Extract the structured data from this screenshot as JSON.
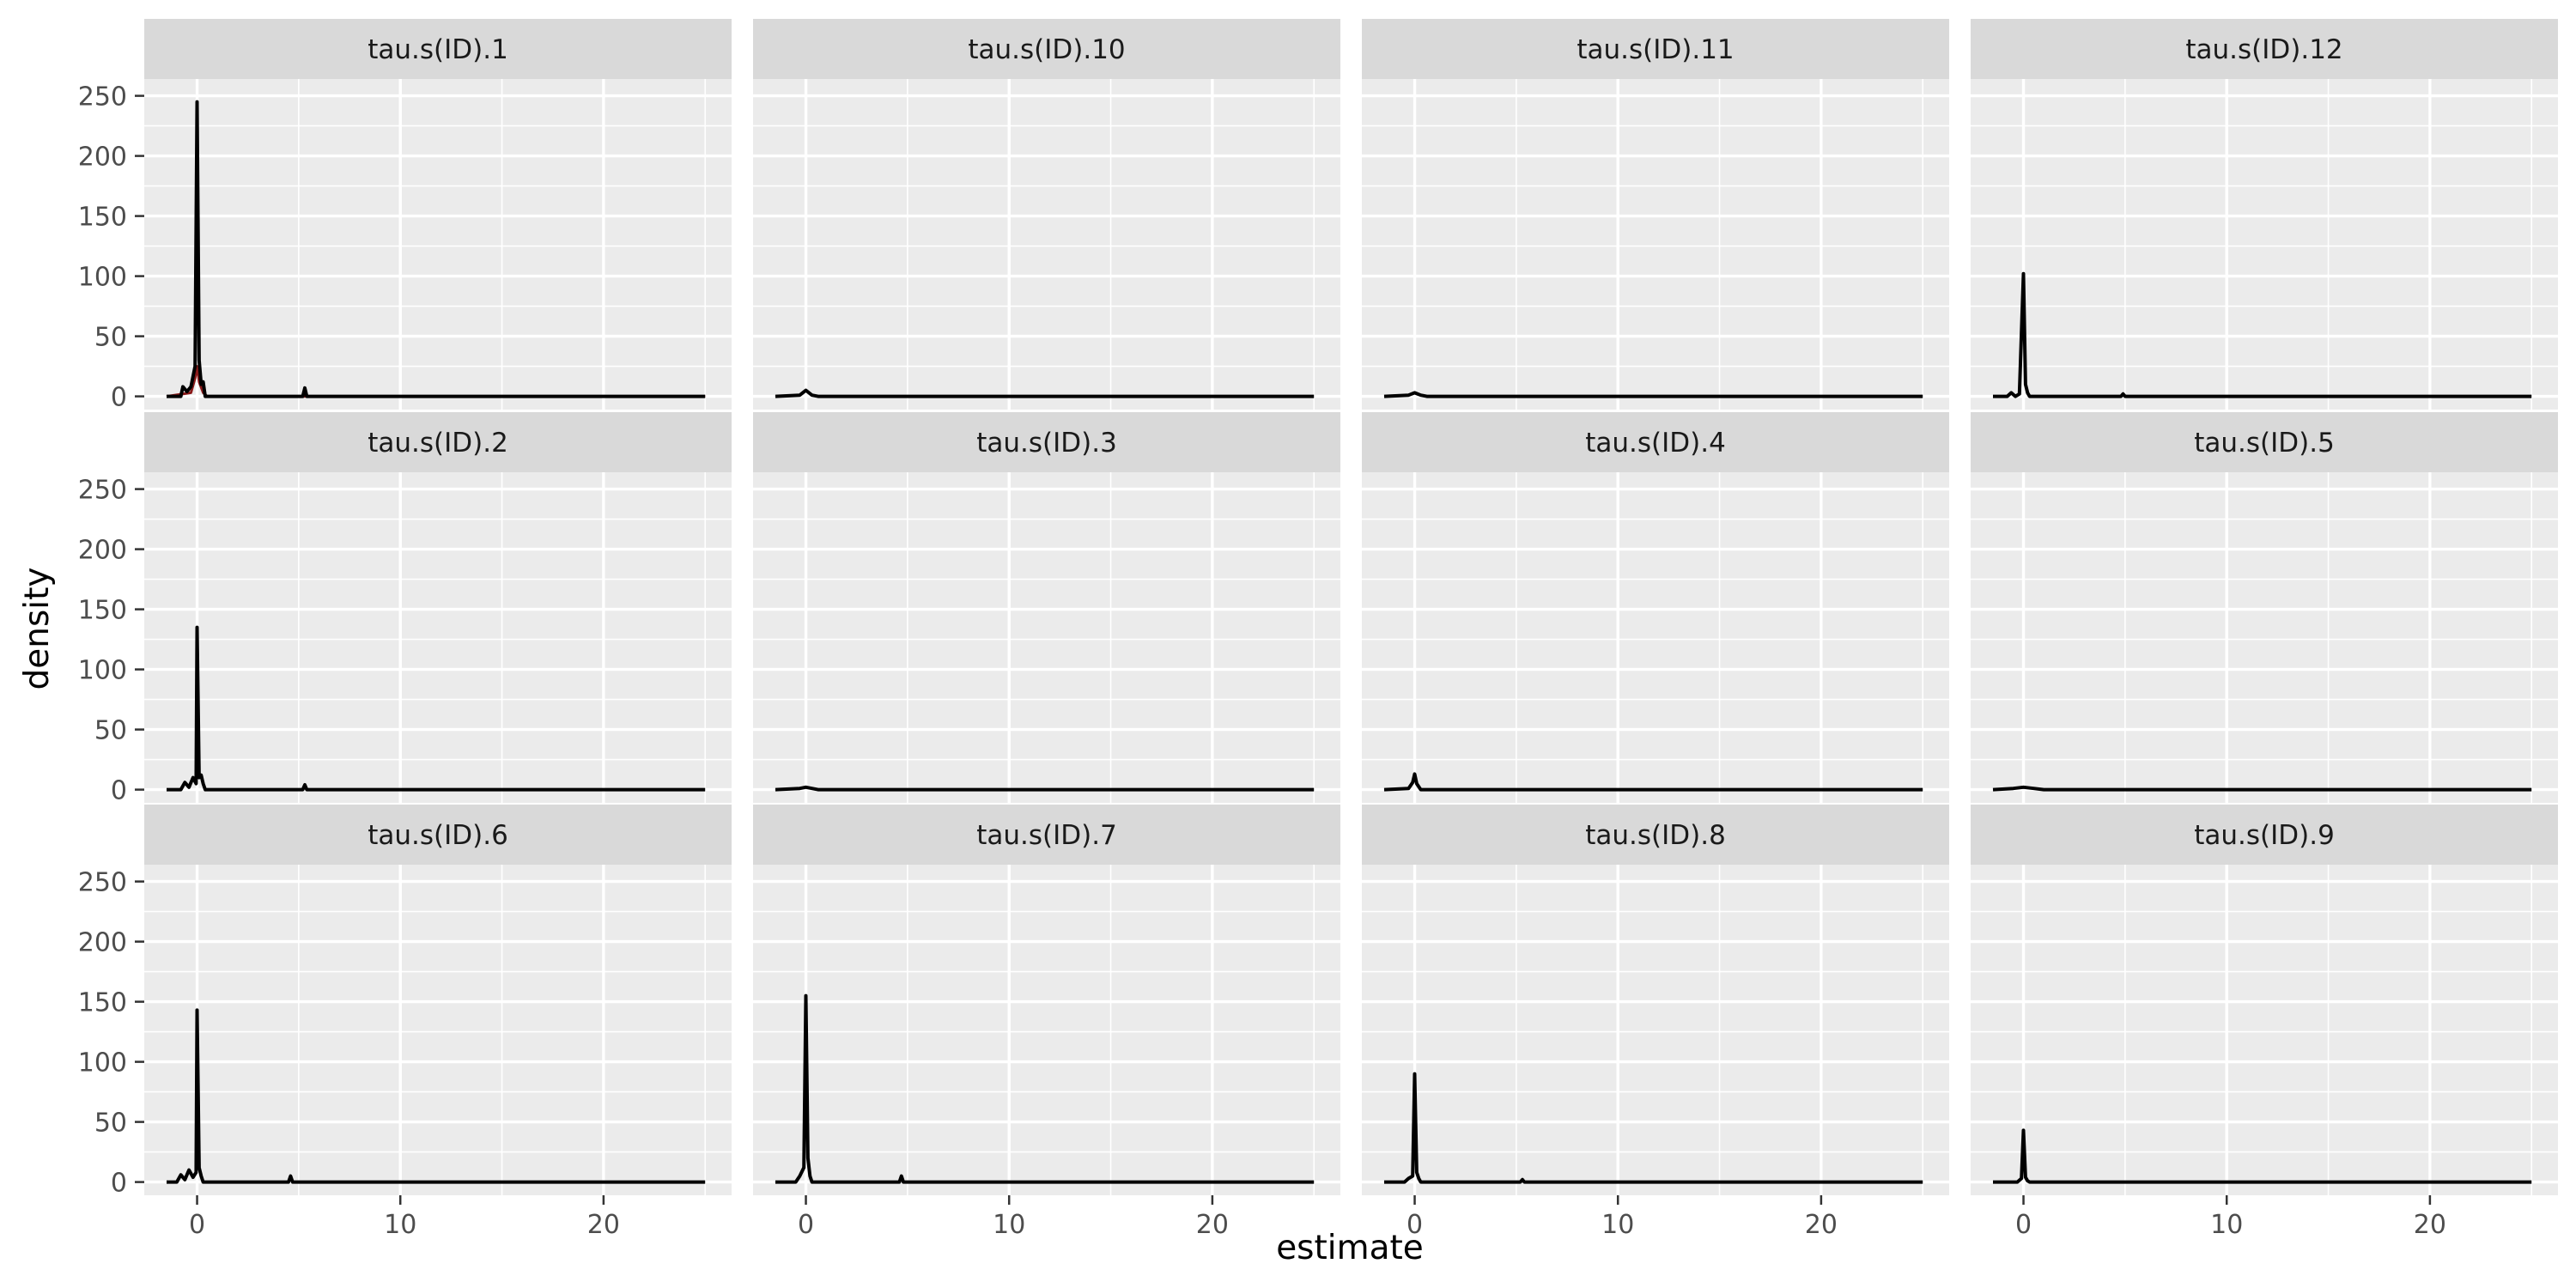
{
  "chart_data": {
    "type": "line",
    "layout": "facet-grid",
    "xlabel": "estimate",
    "ylabel": "density",
    "xlim": [
      -2.6,
      26.3
    ],
    "ylim": [
      -11,
      264
    ],
    "xticks": [
      0,
      10,
      20
    ],
    "xtick_labels": [
      "0",
      "10",
      "20"
    ],
    "yticks": [
      0,
      50,
      100,
      150,
      200,
      250
    ],
    "ytick_labels": [
      "0",
      "50",
      "100",
      "150",
      "200",
      "250"
    ],
    "grid": true,
    "legend": "none",
    "colors": {
      "panel_bg": "#ebebeb",
      "strip_bg": "#d9d9d9",
      "grid": "#ffffff",
      "line": "#000000",
      "secondary_line": "#8b1a1a"
    },
    "panels": [
      {
        "title": "tau.s(ID).1",
        "x": [
          -1.5,
          -0.8,
          -0.7,
          -0.5,
          -0.3,
          -0.1,
          0,
          0.1,
          0.2,
          0.3,
          0.4,
          5.2,
          5.3,
          5.4,
          25
        ],
        "y": [
          0,
          0,
          8,
          4,
          8,
          25,
          245,
          30,
          10,
          12,
          0,
          0,
          7,
          0,
          0
        ],
        "secondary": {
          "x": [
            -1.5,
            -0.3,
            -0.1,
            0,
            0.1,
            0.3,
            0.5,
            25
          ],
          "y": [
            0,
            3,
            15,
            25,
            12,
            3,
            0,
            0
          ]
        }
      },
      {
        "title": "tau.s(ID).10",
        "x": [
          -1.5,
          -0.3,
          0,
          0.3,
          0.6,
          25
        ],
        "y": [
          0,
          1,
          5,
          1,
          0,
          0
        ]
      },
      {
        "title": "tau.s(ID).11",
        "x": [
          -1.5,
          -0.3,
          0,
          0.3,
          0.6,
          25
        ],
        "y": [
          0,
          1,
          3,
          1,
          0,
          0
        ]
      },
      {
        "title": "tau.s(ID).12",
        "x": [
          -1.5,
          -0.8,
          -0.6,
          -0.4,
          -0.2,
          0,
          0.1,
          0.2,
          0.3,
          4.8,
          4.9,
          5.0,
          25
        ],
        "y": [
          0,
          0,
          3,
          0,
          2,
          102,
          10,
          3,
          0,
          0,
          2,
          0,
          0
        ]
      },
      {
        "title": "tau.s(ID).2",
        "x": [
          -1.5,
          -0.8,
          -0.6,
          -0.4,
          -0.2,
          -0.05,
          0,
          0.1,
          0.2,
          0.3,
          0.4,
          5.2,
          5.3,
          5.4,
          25
        ],
        "y": [
          0,
          0,
          6,
          2,
          10,
          5,
          135,
          10,
          12,
          5,
          0,
          0,
          4,
          0,
          0
        ]
      },
      {
        "title": "tau.s(ID).3",
        "x": [
          -1.5,
          -0.3,
          0,
          0.3,
          0.6,
          25
        ],
        "y": [
          0,
          1,
          2,
          1,
          0,
          0
        ]
      },
      {
        "title": "tau.s(ID).4",
        "x": [
          -1.5,
          -0.3,
          -0.1,
          0,
          0.1,
          0.3,
          25
        ],
        "y": [
          0,
          1,
          6,
          13,
          5,
          0,
          0
        ]
      },
      {
        "title": "tau.s(ID).5",
        "x": [
          -1.5,
          -0.5,
          0,
          0.5,
          1.0,
          25
        ],
        "y": [
          0,
          1,
          2,
          1,
          0,
          0
        ]
      },
      {
        "title": "tau.s(ID).6",
        "x": [
          -1.5,
          -1.0,
          -0.8,
          -0.6,
          -0.4,
          -0.2,
          -0.05,
          0,
          0.1,
          0.2,
          0.3,
          4.5,
          4.6,
          4.7,
          25
        ],
        "y": [
          0,
          0,
          6,
          2,
          10,
          4,
          8,
          143,
          12,
          5,
          0,
          0,
          5,
          0,
          0
        ]
      },
      {
        "title": "tau.s(ID).7",
        "x": [
          -1.5,
          -0.5,
          -0.3,
          -0.1,
          0,
          0.1,
          0.2,
          0.3,
          4.6,
          4.7,
          4.8,
          25
        ],
        "y": [
          0,
          0,
          5,
          12,
          155,
          20,
          5,
          0,
          0,
          5,
          0,
          0
        ]
      },
      {
        "title": "tau.s(ID).8",
        "x": [
          -1.5,
          -0.5,
          -0.3,
          -0.1,
          0,
          0.1,
          0.2,
          0.3,
          5.2,
          5.3,
          5.4,
          25
        ],
        "y": [
          0,
          0,
          3,
          5,
          90,
          8,
          3,
          0,
          0,
          2,
          0,
          0
        ]
      },
      {
        "title": "tau.s(ID).9",
        "x": [
          -1.5,
          -0.3,
          -0.1,
          0,
          0.1,
          0.2,
          0.3,
          25
        ],
        "y": [
          0,
          0,
          3,
          43,
          4,
          1,
          0,
          0
        ]
      }
    ]
  }
}
